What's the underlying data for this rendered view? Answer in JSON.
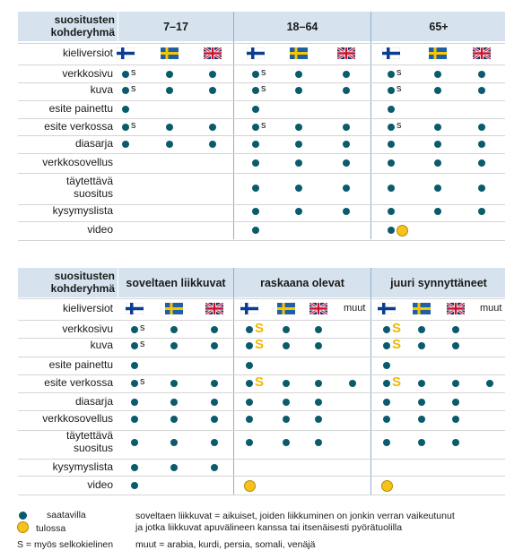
{
  "tables": [
    {
      "header_label_line1": "suositusten",
      "header_label_line2": "kohderyhmä",
      "groups": [
        "7–17",
        "18–64",
        "65+"
      ],
      "language_row_label": "kieliversiot",
      "rows": [
        {
          "label": "verkkosivu"
        },
        {
          "label": "kuva"
        },
        {
          "label": "esite painettu"
        },
        {
          "label": "esite verkossa"
        },
        {
          "label": "diasarja"
        },
        {
          "label": "verkkosovellus"
        },
        {
          "label_line1": "täytettävä",
          "label_line2": "suositus"
        },
        {
          "label": "kysymyslista"
        },
        {
          "label": "video"
        }
      ]
    },
    {
      "header_label_line1": "suositusten",
      "header_label_line2": "kohderyhmä",
      "groups": [
        "soveltaen liikkuvat",
        "raskaana olevat",
        "juuri synnyttäneet"
      ],
      "language_row_label": "kieliversiot",
      "other_languages_label": "muut",
      "rows": [
        {
          "label": "verkkosivu"
        },
        {
          "label": "kuva"
        },
        {
          "label": "esite painettu"
        },
        {
          "label": "esite verkossa"
        },
        {
          "label": "diasarja"
        },
        {
          "label": "verkkosovellus"
        },
        {
          "label_line1": "täytettävä",
          "label_line2": "suositus"
        },
        {
          "label": "kysymyslista"
        },
        {
          "label": "video"
        }
      ]
    }
  ],
  "legend": {
    "available": "saatavilla",
    "printing": "tulossa",
    "plain_language": "S = myös selkokielinen",
    "note_line1": "soveltaen liikkuvat = aikuiset, joiden liikkuminen on jonkin verran vaikeutunut",
    "note_line2": "ja jotka liikkuvat apuvälineen kanssa tai itsenäisesti pyörätuolilla",
    "others_note": "muut = arabia, kurdi, persia, somali, venäjä"
  },
  "s_mark": "s",
  "big_s_mark": "S",
  "colors": {
    "available": "#0a5b6b",
    "printing": "#f6c21c",
    "header_bg": "#d6e3ee"
  }
}
